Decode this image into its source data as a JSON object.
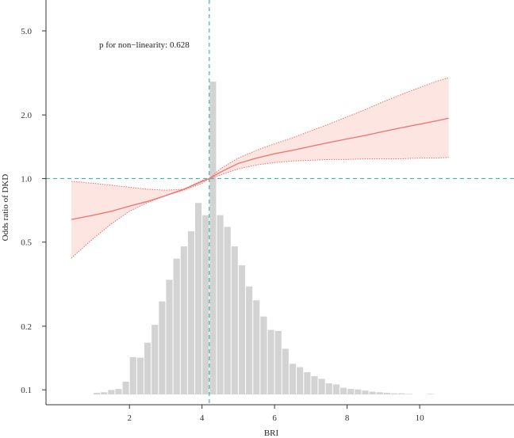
{
  "chart_data": {
    "type": "line",
    "xlabel": "BRI",
    "ylabel": "Odds ratio of DKD",
    "annotation": "p for non−linearity: 0.628",
    "y_scale": "log",
    "xlim": [
      -0.3,
      12.6
    ],
    "ylim": [
      0.085,
      7.0
    ],
    "x_ticks": [
      "2",
      "4",
      "6",
      "8",
      "10"
    ],
    "y_ticks": [
      "0.1",
      "0.2",
      "0.5",
      "1.0",
      "2.0",
      "5.0"
    ],
    "reference_lines": {
      "x": 4.2,
      "y": 1.0,
      "color": "#3fb8a6"
    },
    "series": [
      {
        "type": "line",
        "color": "#f0706a",
        "fill": "#fde0dc",
        "x": [
          0.4,
          1.0,
          1.5,
          2.0,
          2.5,
          3.0,
          3.5,
          4.0,
          4.2,
          4.5,
          5.0,
          5.5,
          6.0,
          6.5,
          7.0,
          7.5,
          8.0,
          8.5,
          9.0,
          9.5,
          10.0,
          10.5,
          10.8
        ],
        "y": [
          0.64,
          0.67,
          0.7,
          0.74,
          0.78,
          0.83,
          0.89,
          0.97,
          1.0,
          1.07,
          1.18,
          1.25,
          1.31,
          1.36,
          1.42,
          1.48,
          1.54,
          1.6,
          1.67,
          1.74,
          1.81,
          1.88,
          1.93
        ],
        "lower": [
          0.42,
          0.52,
          0.61,
          0.7,
          0.77,
          0.83,
          0.88,
          0.95,
          1.0,
          1.04,
          1.11,
          1.16,
          1.19,
          1.21,
          1.22,
          1.23,
          1.23,
          1.24,
          1.24,
          1.24,
          1.25,
          1.25,
          1.26
        ],
        "upper": [
          0.97,
          0.95,
          0.93,
          0.91,
          0.89,
          0.88,
          0.89,
          0.98,
          1.0,
          1.11,
          1.25,
          1.36,
          1.46,
          1.56,
          1.68,
          1.81,
          1.96,
          2.12,
          2.31,
          2.5,
          2.7,
          2.9,
          3.0
        ]
      }
    ],
    "histogram": {
      "color": "#d3d3d3",
      "bin_width": 0.2,
      "bin_starts": [
        1.0,
        1.2,
        1.4,
        1.6,
        1.8,
        2.0,
        2.2,
        2.4,
        2.6,
        2.8,
        3.0,
        3.2,
        3.4,
        3.6,
        3.8,
        4.0,
        4.2,
        4.4,
        4.6,
        4.8,
        5.0,
        5.2,
        5.4,
        5.6,
        5.8,
        6.0,
        6.2,
        6.4,
        6.6,
        6.8,
        7.0,
        7.2,
        7.4,
        7.6,
        7.8,
        8.0,
        8.2,
        8.4,
        8.6,
        8.8,
        9.0,
        9.2,
        9.4,
        9.6,
        10.2
      ],
      "heights": [
        0.003,
        0.004,
        0.008,
        0.01,
        0.023,
        0.067,
        0.066,
        0.093,
        0.125,
        0.167,
        0.206,
        0.244,
        0.266,
        0.293,
        0.344,
        0.322,
        0.562,
        0.322,
        0.301,
        0.266,
        0.232,
        0.194,
        0.169,
        0.14,
        0.116,
        0.114,
        0.082,
        0.055,
        0.049,
        0.04,
        0.033,
        0.028,
        0.02,
        0.018,
        0.012,
        0.01,
        0.009,
        0.007,
        0.005,
        0.004,
        0.003,
        0.002,
        0.002,
        0.001,
        0.001
      ]
    }
  }
}
